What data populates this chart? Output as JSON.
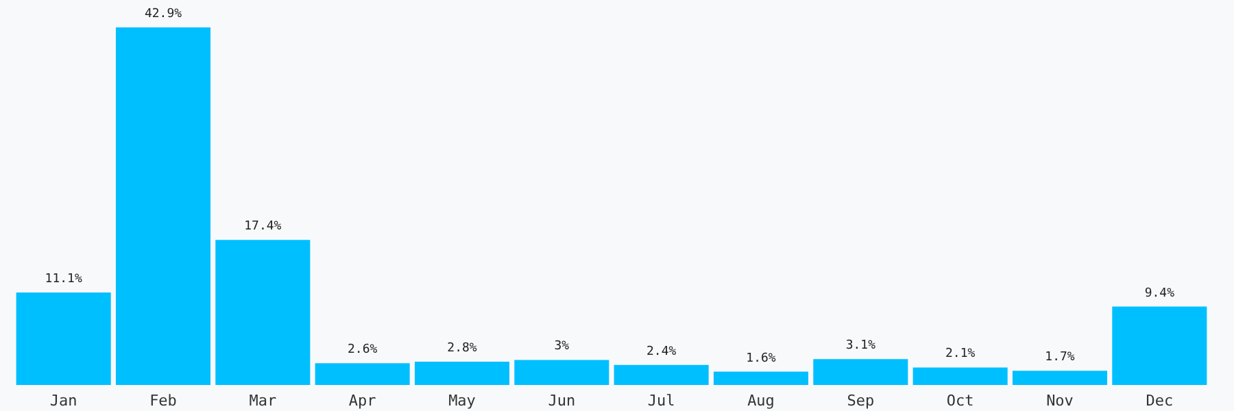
{
  "chart_data": {
    "type": "bar",
    "categories": [
      "Jan",
      "Feb",
      "Mar",
      "Apr",
      "May",
      "Jun",
      "Jul",
      "Aug",
      "Sep",
      "Oct",
      "Nov",
      "Dec"
    ],
    "values": [
      11.1,
      42.9,
      17.4,
      2.6,
      2.8,
      3,
      2.4,
      1.6,
      3.1,
      2.1,
      1.7,
      9.4
    ],
    "value_labels": [
      "11.1%",
      "42.9%",
      "17.4%",
      "2.6%",
      "2.8%",
      "3%",
      "2.4%",
      "1.6%",
      "3.1%",
      "2.1%",
      "1.7%",
      "9.4%"
    ],
    "color": "#00bfff",
    "grid": false
  }
}
